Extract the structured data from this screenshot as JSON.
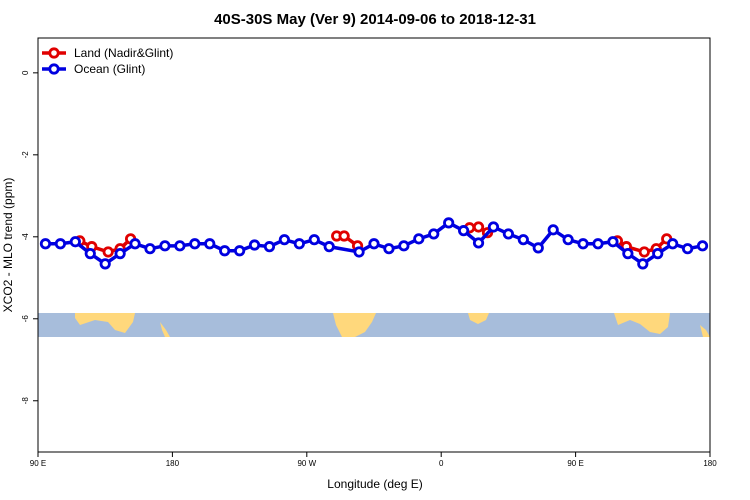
{
  "chart_data": {
    "type": "line",
    "title": "40S-30S May (Ver 9)   2014-09-06 to 2018-12-31",
    "xlabel": "Longitude (deg E)",
    "ylabel": "XCO2 - MLO trend (ppm)",
    "xlim": [
      90,
      540
    ],
    "ylim": [
      -9.25,
      0.85
    ],
    "xticks": [
      {
        "value": 90,
        "label": "90 E"
      },
      180,
      {
        "value": 270,
        "label": "90 W"
      },
      {
        "value": 360,
        "label": "0"
      },
      {
        "value": 450,
        "label": "90 E"
      },
      {
        "value": 540,
        "label": "180"
      }
    ],
    "yticks": [
      0,
      -2,
      -4,
      -6,
      -8
    ],
    "legend": "top-left",
    "series": [
      {
        "name": "Land (Nadir&Glint)",
        "color": "#e00000",
        "x": [
          118,
          126,
          137,
          145,
          152,
          null,
          290,
          295,
          304,
          null,
          379,
          385,
          391,
          null,
          478,
          484,
          496,
          504,
          511
        ],
        "values": [
          -4.1,
          -4.24,
          -4.37,
          -4.29,
          -4.05,
          null,
          -3.98,
          -3.98,
          -4.22,
          null,
          -3.78,
          -3.76,
          -3.9,
          null,
          -4.1,
          -4.24,
          -4.37,
          -4.29,
          -4.05
        ]
      },
      {
        "name": "Ocean (Glint)",
        "color": "#0000e0",
        "x": [
          95,
          105,
          115,
          125,
          135,
          145,
          155,
          165,
          175,
          185,
          195,
          205,
          215,
          225,
          235,
          245,
          255,
          265,
          275,
          285,
          305,
          315,
          325,
          335,
          345,
          355,
          365,
          375,
          385,
          395,
          405,
          415,
          425,
          435,
          445,
          455,
          465,
          475,
          485,
          495,
          505,
          515,
          525,
          535
        ],
        "values": [
          -4.17,
          -4.17,
          -4.12,
          -4.41,
          -4.66,
          -4.41,
          -4.17,
          -4.29,
          -4.22,
          -4.22,
          -4.17,
          -4.17,
          -4.34,
          -4.34,
          -4.2,
          -4.24,
          -4.07,
          -4.17,
          -4.07,
          -4.24,
          -4.37,
          -4.17,
          -4.29,
          -4.22,
          -4.05,
          -3.93,
          -3.66,
          -3.85,
          -4.15,
          -3.76,
          -3.93,
          -4.07,
          -4.27,
          -3.83,
          -4.07,
          -4.17,
          -4.17,
          -4.12,
          -4.41,
          -4.66,
          -4.41,
          -4.17,
          -4.29,
          -4.22
        ]
      }
    ]
  }
}
